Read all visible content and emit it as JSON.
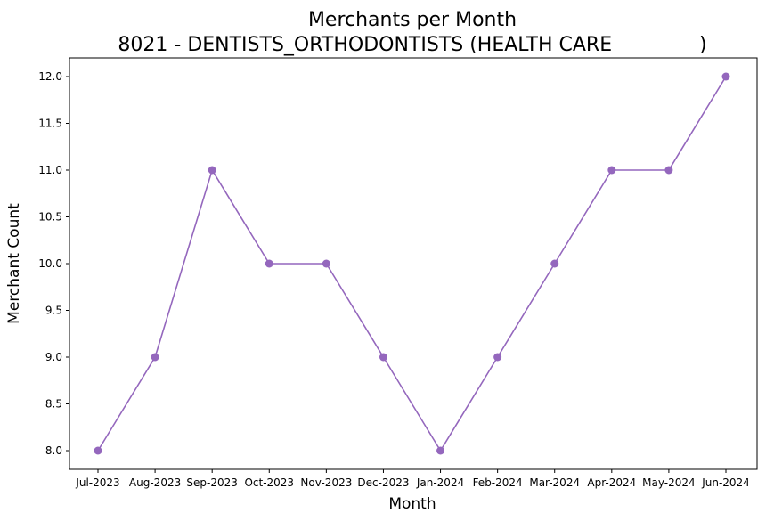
{
  "chart_data": {
    "type": "line",
    "title": "Merchants per Month",
    "subtitle": "8021 - DENTISTS_ORTHODONTISTS (HEALTH CARE              )",
    "xlabel": "Month",
    "ylabel": "Merchant Count",
    "categories": [
      "Jul-2023",
      "Aug-2023",
      "Sep-2023",
      "Oct-2023",
      "Nov-2023",
      "Dec-2023",
      "Jan-2024",
      "Feb-2024",
      "Mar-2024",
      "Apr-2024",
      "May-2024",
      "Jun-2024"
    ],
    "series": [
      {
        "values": [
          8,
          9,
          11,
          10,
          10,
          9,
          8,
          9,
          10,
          11,
          11,
          12
        ],
        "color": "#9467bd"
      }
    ],
    "yticks": [
      "8.0",
      "8.5",
      "9.0",
      "9.5",
      "10.0",
      "10.5",
      "11.0",
      "11.5",
      "12.0"
    ],
    "ylim": [
      7.8,
      12.2
    ],
    "grid": false,
    "marker": "circle"
  }
}
